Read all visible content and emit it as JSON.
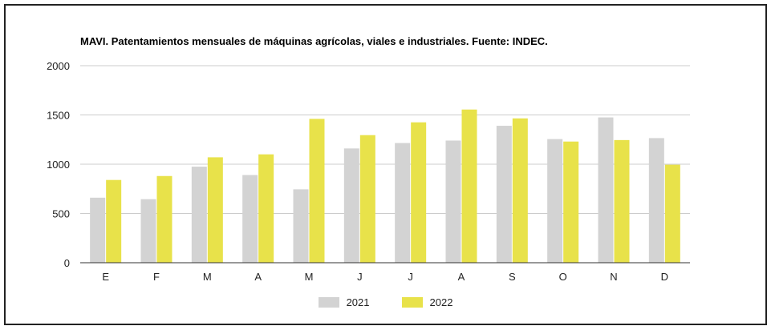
{
  "chart_data": {
    "type": "bar",
    "title": "MAVI. Patentamientos mensuales de máquinas agrícolas, viales e industriales. Fuente: INDEC.",
    "categories": [
      "E",
      "F",
      "M",
      "A",
      "M",
      "J",
      "J",
      "A",
      "S",
      "O",
      "N",
      "D"
    ],
    "series": [
      {
        "name": "2021",
        "color": "#d3d3d3",
        "values": [
          660,
          645,
          975,
          890,
          745,
          1160,
          1215,
          1240,
          1390,
          1255,
          1475,
          1265
        ]
      },
      {
        "name": "2022",
        "color": "#e8e24a",
        "values": [
          840,
          880,
          1070,
          1100,
          1460,
          1295,
          1425,
          1555,
          1465,
          1230,
          1245,
          995
        ]
      }
    ],
    "ylim": [
      0,
      2000
    ],
    "yticks": [
      0,
      500,
      1000,
      1500,
      2000
    ],
    "grid": true,
    "legend": "bottom",
    "xlabel": "",
    "ylabel": ""
  }
}
